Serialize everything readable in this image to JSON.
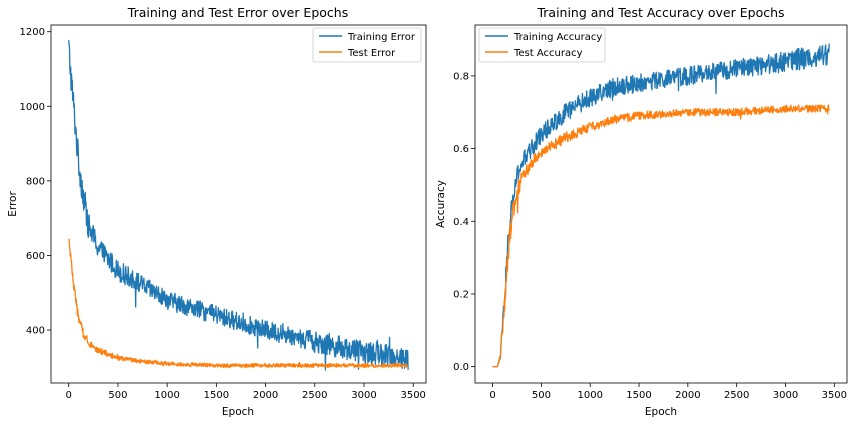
{
  "chart_data": [
    {
      "type": "line",
      "title": "Training and Test Error over Epochs",
      "xlabel": "Epoch",
      "ylabel": "Error",
      "xlim": [
        -180,
        3630
      ],
      "ylim": [
        258,
        1218
      ],
      "xticks": [
        0,
        500,
        1000,
        1500,
        2000,
        2500,
        3000,
        3500
      ],
      "yticks": [
        400,
        600,
        800,
        1000,
        1200
      ],
      "grid": false,
      "legend": "top-right",
      "series": [
        {
          "name": "Training Error",
          "color": "#1f77b4",
          "x": [
            0,
            20,
            50,
            100,
            150,
            200,
            300,
            400,
            500,
            750,
            1000,
            1250,
            1500,
            1750,
            2000,
            2250,
            2500,
            2750,
            3000,
            3250,
            3450
          ],
          "y": [
            1160,
            1090,
            1000,
            850,
            760,
            680,
            620,
            590,
            560,
            520,
            480,
            460,
            440,
            420,
            400,
            385,
            370,
            355,
            340,
            335,
            320
          ],
          "noise": [
            40,
            40,
            40,
            40,
            40,
            35,
            30,
            28,
            28,
            25,
            25,
            25,
            25,
            25,
            25,
            25,
            30,
            30,
            30,
            30,
            30
          ]
        },
        {
          "name": "Test Error",
          "color": "#ff7f0e",
          "x": [
            0,
            20,
            50,
            100,
            150,
            200,
            250,
            300,
            400,
            500,
            750,
            1000,
            1500,
            2000,
            2500,
            3000,
            3450
          ],
          "y": [
            640,
            600,
            520,
            430,
            390,
            370,
            355,
            345,
            335,
            325,
            315,
            310,
            305,
            305,
            305,
            305,
            305
          ],
          "noise": [
            10,
            10,
            12,
            12,
            12,
            10,
            10,
            8,
            8,
            6,
            5,
            5,
            5,
            5,
            5,
            5,
            5
          ]
        }
      ]
    },
    {
      "type": "line",
      "title": "Training and Test Accuracy over Epochs",
      "xlabel": "Epoch",
      "ylabel": "Accuracy",
      "xlim": [
        -180,
        3630
      ],
      "ylim": [
        -0.045,
        0.94
      ],
      "xticks": [
        0,
        500,
        1000,
        1500,
        2000,
        2500,
        3000,
        3500
      ],
      "yticks": [
        0.0,
        0.2,
        0.4,
        0.6,
        0.8
      ],
      "grid": false,
      "legend": "top-left",
      "series": [
        {
          "name": "Training Accuracy",
          "color": "#1f77b4",
          "x": [
            0,
            50,
            80,
            100,
            130,
            160,
            200,
            250,
            300,
            400,
            500,
            750,
            1000,
            1250,
            1500,
            2000,
            2500,
            3000,
            3450
          ],
          "y": [
            0.0,
            0.0,
            0.03,
            0.1,
            0.22,
            0.35,
            0.45,
            0.52,
            0.56,
            0.6,
            0.64,
            0.7,
            0.74,
            0.77,
            0.78,
            0.8,
            0.82,
            0.84,
            0.86
          ],
          "noise": [
            0,
            0,
            0.01,
            0.02,
            0.03,
            0.03,
            0.03,
            0.03,
            0.025,
            0.025,
            0.025,
            0.025,
            0.025,
            0.025,
            0.025,
            0.025,
            0.025,
            0.03,
            0.03
          ]
        },
        {
          "name": "Test Accuracy",
          "color": "#ff7f0e",
          "x": [
            0,
            50,
            80,
            100,
            130,
            160,
            200,
            250,
            300,
            400,
            500,
            750,
            1000,
            1250,
            1500,
            2000,
            2500,
            3000,
            3450
          ],
          "y": [
            0.0,
            0.0,
            0.03,
            0.1,
            0.2,
            0.32,
            0.42,
            0.48,
            0.52,
            0.56,
            0.59,
            0.63,
            0.66,
            0.68,
            0.69,
            0.7,
            0.7,
            0.71,
            0.71
          ],
          "noise": [
            0,
            0,
            0.01,
            0.02,
            0.03,
            0.03,
            0.03,
            0.025,
            0.02,
            0.015,
            0.015,
            0.015,
            0.012,
            0.012,
            0.012,
            0.01,
            0.01,
            0.01,
            0.01
          ]
        }
      ]
    }
  ]
}
